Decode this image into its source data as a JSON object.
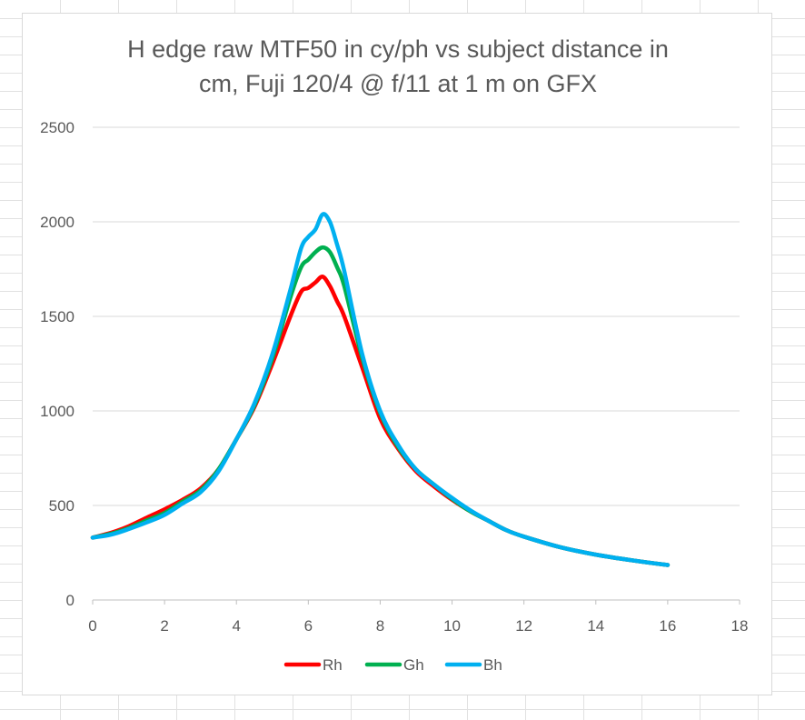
{
  "chart_data": {
    "type": "line",
    "title_lines": [
      "H edge raw MTF50 in cy/ph vs subject distance in",
      "cm, Fuji 120/4 @ f/11 at 1 m on GFX"
    ],
    "xlabel": "",
    "ylabel": "",
    "xlim": [
      0,
      18
    ],
    "ylim": [
      0,
      2500
    ],
    "x_ticks": [
      0,
      2,
      4,
      6,
      8,
      10,
      12,
      14,
      16,
      18
    ],
    "y_ticks": [
      0,
      500,
      1000,
      1500,
      2000,
      2500
    ],
    "grid": "horizontal",
    "legend_position": "bottom",
    "x": [
      0,
      0.5,
      1,
      1.5,
      2,
      2.5,
      3,
      3.5,
      4,
      4.5,
      5,
      5.5,
      5.8,
      6,
      6.2,
      6.4,
      6.6,
      6.8,
      7,
      7.5,
      8,
      8.5,
      9,
      9.5,
      10,
      10.5,
      11,
      11.5,
      12,
      13,
      14,
      15,
      16
    ],
    "series": [
      {
        "name": "Rh",
        "color": "#ff0000",
        "values": [
          330,
          355,
          390,
          435,
          480,
          530,
          590,
          690,
          850,
          1020,
          1250,
          1500,
          1630,
          1650,
          1680,
          1710,
          1660,
          1580,
          1500,
          1230,
          960,
          800,
          680,
          600,
          530,
          470,
          420,
          370,
          335,
          280,
          240,
          210,
          185
        ]
      },
      {
        "name": "Gh",
        "color": "#00b050",
        "values": [
          330,
          350,
          380,
          420,
          460,
          520,
          580,
          690,
          850,
          1030,
          1280,
          1600,
          1760,
          1800,
          1840,
          1865,
          1840,
          1760,
          1660,
          1280,
          990,
          810,
          690,
          610,
          535,
          470,
          420,
          370,
          335,
          280,
          240,
          210,
          185
        ]
      },
      {
        "name": "Bh",
        "color": "#00b0f0",
        "values": [
          330,
          345,
          375,
          410,
          450,
          510,
          570,
          680,
          850,
          1040,
          1300,
          1640,
          1860,
          1920,
          1960,
          2040,
          2000,
          1880,
          1740,
          1300,
          1000,
          820,
          690,
          610,
          540,
          475,
          420,
          370,
          335,
          280,
          240,
          210,
          185
        ]
      }
    ]
  }
}
